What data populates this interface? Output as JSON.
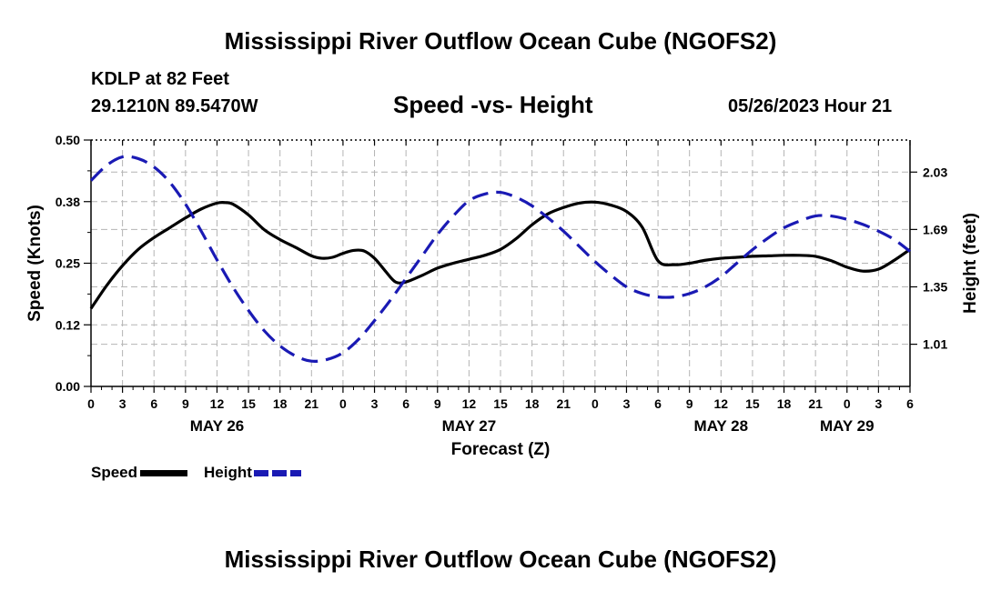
{
  "page": {
    "title": "Mississippi River Outflow Ocean Cube (NGOFS2)",
    "footer_title": "Mississippi River Outflow Ocean Cube (NGOFS2)",
    "station": "KDLP at 82 Feet",
    "coordinates": "29.1210N  89.5470W",
    "subtitle": "Speed -vs- Height",
    "datetime": "05/26/2023 Hour 21"
  },
  "legend": {
    "speed_label": "Speed",
    "height_label": "Height"
  },
  "colors": {
    "speed": "#000000",
    "height": "#1a1ab4",
    "grid": "#b4b4b4",
    "axis": "#000000"
  },
  "chart_data": {
    "type": "line",
    "title": "Speed -vs- Height",
    "xlabel": "Forecast (Z)",
    "ylabel": "Speed (Knots)",
    "y2label": "Height (feet)",
    "xlim": [
      0,
      78
    ],
    "ylim": [
      0,
      0.5
    ],
    "y2lim": [
      0.76,
      2.22
    ],
    "grid": true,
    "x_tick_labels": [
      {
        "x": 0,
        "label": "0"
      },
      {
        "x": 3,
        "label": "3"
      },
      {
        "x": 6,
        "label": "6"
      },
      {
        "x": 9,
        "label": "9"
      },
      {
        "x": 12,
        "label": "12"
      },
      {
        "x": 15,
        "label": "15"
      },
      {
        "x": 18,
        "label": "18"
      },
      {
        "x": 21,
        "label": "21"
      },
      {
        "x": 24,
        "label": "0"
      },
      {
        "x": 27,
        "label": "3"
      },
      {
        "x": 30,
        "label": "6"
      },
      {
        "x": 33,
        "label": "9"
      },
      {
        "x": 36,
        "label": "12"
      },
      {
        "x": 39,
        "label": "15"
      },
      {
        "x": 42,
        "label": "18"
      },
      {
        "x": 45,
        "label": "21"
      },
      {
        "x": 48,
        "label": "0"
      },
      {
        "x": 51,
        "label": "3"
      },
      {
        "x": 54,
        "label": "6"
      },
      {
        "x": 57,
        "label": "9"
      },
      {
        "x": 60,
        "label": "12"
      },
      {
        "x": 63,
        "label": "15"
      },
      {
        "x": 66,
        "label": "18"
      },
      {
        "x": 69,
        "label": "21"
      },
      {
        "x": 72,
        "label": "0"
      },
      {
        "x": 75,
        "label": "3"
      },
      {
        "x": 78,
        "label": "6"
      }
    ],
    "date_labels": [
      {
        "x": 12,
        "label": "MAY 26"
      },
      {
        "x": 36,
        "label": "MAY 27"
      },
      {
        "x": 60,
        "label": "MAY 28"
      },
      {
        "x": 72,
        "label": "MAY 29"
      }
    ],
    "y_ticks": [
      {
        "v": 0.0,
        "label": "0.00"
      },
      {
        "v": 0.125,
        "label": "0.12"
      },
      {
        "v": 0.25,
        "label": "0.25"
      },
      {
        "v": 0.375,
        "label": "0.38"
      },
      {
        "v": 0.5,
        "label": "0.50"
      }
    ],
    "y2_ticks": [
      {
        "v": 1.01,
        "label": "1.01"
      },
      {
        "v": 1.35,
        "label": "1.35"
      },
      {
        "v": 1.69,
        "label": "1.69"
      },
      {
        "v": 2.03,
        "label": "2.03"
      }
    ],
    "series": [
      {
        "name": "Speed",
        "axis": "left",
        "style": "solid",
        "x": [
          0,
          1.5,
          3,
          4.5,
          6,
          7.5,
          9,
          10.5,
          12,
          12.8,
          13.5,
          15,
          16.5,
          18,
          19.5,
          21,
          22,
          23,
          24,
          25,
          26,
          27,
          28,
          29,
          30,
          31.5,
          33,
          34.5,
          36,
          37.5,
          39,
          40.5,
          42,
          43.5,
          45,
          46.5,
          48,
          49.5,
          51,
          52.5,
          54,
          55.5,
          57,
          58.5,
          60,
          61.5,
          63,
          64.5,
          66,
          67.5,
          69,
          70.5,
          72,
          73.5,
          75,
          76.5,
          78
        ],
        "y": [
          0.158,
          0.205,
          0.245,
          0.278,
          0.302,
          0.322,
          0.342,
          0.36,
          0.372,
          0.373,
          0.37,
          0.348,
          0.318,
          0.298,
          0.282,
          0.265,
          0.26,
          0.262,
          0.27,
          0.276,
          0.275,
          0.26,
          0.235,
          0.212,
          0.212,
          0.225,
          0.24,
          0.25,
          0.258,
          0.266,
          0.278,
          0.3,
          0.328,
          0.35,
          0.363,
          0.372,
          0.374,
          0.368,
          0.355,
          0.323,
          0.255,
          0.247,
          0.25,
          0.256,
          0.26,
          0.262,
          0.264,
          0.265,
          0.266,
          0.266,
          0.264,
          0.255,
          0.242,
          0.234,
          0.238,
          0.256,
          0.278
        ]
      },
      {
        "name": "Height",
        "axis": "right",
        "style": "dashed",
        "x": [
          0,
          1.5,
          3,
          4.5,
          6,
          7.5,
          9,
          10.5,
          12,
          13.5,
          15,
          16.5,
          18,
          19.5,
          21,
          22.5,
          24,
          25.5,
          27,
          28.5,
          30,
          31.5,
          33,
          34.5,
          36,
          37.5,
          39,
          40.5,
          42,
          43.5,
          45,
          46.5,
          48,
          49.5,
          51,
          52.5,
          54,
          55.5,
          57,
          58.5,
          60,
          61.5,
          63,
          64.5,
          66,
          67.5,
          69,
          70.5,
          72,
          73.5,
          75,
          76.5,
          78
        ],
        "y": [
          1.98,
          2.07,
          2.12,
          2.11,
          2.06,
          1.97,
          1.84,
          1.68,
          1.51,
          1.35,
          1.21,
          1.09,
          1.0,
          0.94,
          0.91,
          0.92,
          0.96,
          1.04,
          1.15,
          1.27,
          1.4,
          1.53,
          1.66,
          1.77,
          1.86,
          1.9,
          1.91,
          1.88,
          1.83,
          1.76,
          1.68,
          1.59,
          1.5,
          1.42,
          1.35,
          1.31,
          1.29,
          1.29,
          1.31,
          1.35,
          1.41,
          1.49,
          1.57,
          1.64,
          1.7,
          1.74,
          1.77,
          1.77,
          1.75,
          1.72,
          1.68,
          1.63,
          1.56
        ]
      }
    ]
  }
}
